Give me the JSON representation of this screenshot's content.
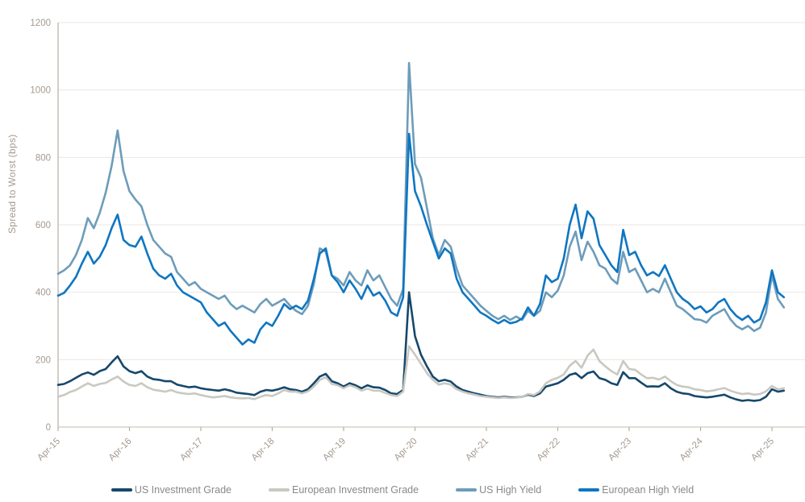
{
  "style": {
    "background": "#ffffff",
    "grid_color": "#e9e7e3",
    "y_axis_line_color": "#b5aea4",
    "x_axis_line_color": "#cfc9c0",
    "tick_color": "#b5aea4",
    "tick_label_color": "#a49a8f",
    "legend_text_color": "#898989"
  },
  "chart_data": {
    "type": "line",
    "title": "",
    "xlabel": "",
    "ylabel": "Spread to Worst (bps)",
    "ylim": [
      0,
      1200
    ],
    "y_ticks": [
      0,
      200,
      400,
      600,
      800,
      1000,
      1200
    ],
    "x_tick_labels": [
      "Apr-15",
      "Apr-16",
      "Apr-17",
      "Apr-18",
      "Apr-19",
      "Apr-20",
      "Apr-21",
      "Apr-22",
      "Apr-23",
      "Apr-24",
      "Apr-25"
    ],
    "x_start": "2015-04",
    "x_frequency": "monthly",
    "grid": "horizontal",
    "legend_position": "bottom",
    "series": [
      {
        "name": "US Investment Grade",
        "color": "#16486c",
        "values": [
          125,
          128,
          136,
          146,
          156,
          162,
          155,
          166,
          172,
          192,
          210,
          180,
          166,
          160,
          166,
          150,
          142,
          140,
          136,
          136,
          126,
          122,
          118,
          120,
          115,
          112,
          110,
          108,
          112,
          108,
          102,
          100,
          98,
          95,
          105,
          110,
          108,
          112,
          118,
          112,
          110,
          105,
          112,
          130,
          150,
          158,
          136,
          130,
          120,
          130,
          124,
          115,
          124,
          118,
          117,
          110,
          100,
          98,
          110,
          400,
          270,
          215,
          180,
          150,
          136,
          140,
          135,
          120,
          110,
          105,
          100,
          96,
          92,
          90,
          88,
          90,
          88,
          88,
          90,
          96,
          92,
          100,
          120,
          125,
          130,
          140,
          155,
          160,
          145,
          160,
          165,
          145,
          140,
          130,
          125,
          163,
          145,
          145,
          132,
          120,
          121,
          120,
          130,
          115,
          105,
          100,
          98,
          92,
          90,
          88,
          90,
          93,
          96,
          88,
          82,
          78,
          80,
          78,
          80,
          90,
          112,
          105,
          108
        ]
      },
      {
        "name": "European Investment Grade",
        "color": "#c9c8c1",
        "values": [
          90,
          95,
          104,
          110,
          120,
          130,
          122,
          128,
          131,
          141,
          150,
          135,
          125,
          122,
          130,
          118,
          111,
          108,
          105,
          110,
          103,
          100,
          98,
          100,
          95,
          91,
          88,
          90,
          92,
          88,
          86,
          85,
          86,
          83,
          90,
          95,
          92,
          100,
          110,
          105,
          105,
          100,
          106,
          120,
          140,
          148,
          128,
          124,
          115,
          124,
          118,
          108,
          114,
          108,
          108,
          101,
          95,
          92,
          105,
          240,
          215,
          188,
          160,
          140,
          126,
          130,
          126,
          112,
          105,
          100,
          96,
          92,
          90,
          88,
          86,
          88,
          86,
          87,
          90,
          98,
          95,
          106,
          130,
          140,
          146,
          156,
          182,
          196,
          176,
          212,
          230,
          196,
          180,
          166,
          156,
          196,
          172,
          170,
          156,
          145,
          146,
          141,
          150,
          136,
          125,
          120,
          118,
          112,
          110,
          106,
          108,
          112,
          116,
          108,
          102,
          98,
          100,
          96,
          98,
          106,
          122,
          112,
          115
        ]
      },
      {
        "name": "US High Yield",
        "color": "#6d9cba",
        "values": [
          455,
          465,
          480,
          510,
          555,
          620,
          590,
          635,
          695,
          775,
          880,
          760,
          700,
          675,
          655,
          600,
          555,
          535,
          515,
          505,
          460,
          440,
          420,
          430,
          410,
          400,
          390,
          380,
          390,
          365,
          350,
          360,
          350,
          340,
          365,
          380,
          360,
          370,
          380,
          360,
          345,
          335,
          360,
          425,
          530,
          520,
          450,
          440,
          420,
          460,
          435,
          420,
          465,
          435,
          450,
          415,
          380,
          360,
          410,
          1080,
          780,
          740,
          650,
          560,
          510,
          555,
          535,
          470,
          420,
          400,
          380,
          360,
          345,
          330,
          320,
          330,
          318,
          328,
          318,
          345,
          330,
          345,
          400,
          385,
          405,
          450,
          535,
          580,
          495,
          550,
          520,
          480,
          470,
          440,
          425,
          520,
          460,
          470,
          435,
          400,
          410,
          400,
          440,
          400,
          360,
          350,
          335,
          320,
          318,
          310,
          330,
          340,
          350,
          320,
          300,
          290,
          300,
          285,
          295,
          340,
          450,
          380,
          355
        ]
      },
      {
        "name": "European High Yield",
        "color": "#0e76c2",
        "values": [
          390,
          398,
          420,
          445,
          485,
          520,
          485,
          505,
          540,
          590,
          630,
          555,
          540,
          535,
          565,
          515,
          470,
          450,
          440,
          455,
          420,
          400,
          390,
          380,
          370,
          340,
          320,
          300,
          310,
          285,
          265,
          245,
          260,
          250,
          290,
          310,
          300,
          330,
          365,
          350,
          360,
          350,
          375,
          440,
          515,
          530,
          450,
          430,
          400,
          435,
          410,
          380,
          420,
          390,
          400,
          375,
          340,
          330,
          385,
          870,
          700,
          655,
          600,
          550,
          500,
          530,
          515,
          440,
          400,
          380,
          360,
          340,
          330,
          318,
          308,
          318,
          308,
          312,
          322,
          355,
          330,
          365,
          450,
          430,
          440,
          500,
          600,
          660,
          560,
          640,
          618,
          540,
          510,
          480,
          460,
          585,
          510,
          520,
          480,
          450,
          460,
          448,
          480,
          440,
          400,
          380,
          368,
          350,
          358,
          340,
          350,
          370,
          380,
          350,
          330,
          318,
          330,
          310,
          320,
          370,
          465,
          400,
          385
        ]
      }
    ]
  }
}
